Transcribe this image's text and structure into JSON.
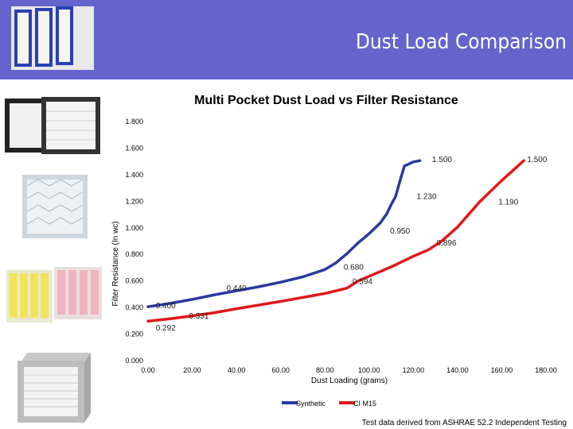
{
  "slide": {
    "title": "Dust  Load Comparison",
    "footnote": "Test data derived from ASHRAE 52.2 Independent Testing",
    "colors": {
      "header": "#6464cc",
      "synthetic": "#2b3aa0",
      "cim15": "#e01818"
    }
  },
  "chart_data": {
    "type": "line",
    "title": "Multi Pocket Dust Load vs Filter Resistance",
    "xlabel": "Dust Loading (grams)",
    "ylabel": "Filter Resistance (In wc)",
    "xlim": [
      0,
      180
    ],
    "ylim": [
      0,
      1.8
    ],
    "xticks": [
      "0.00",
      "20.00",
      "40.00",
      "60.00",
      "80.00",
      "100.00",
      "120.00",
      "140.00",
      "160.00",
      "180.00"
    ],
    "yticks": [
      "0.000",
      "0.200",
      "0.400",
      "0.600",
      "0.800",
      "1.000",
      "1.200",
      "1.400",
      "1.600",
      "1.800"
    ],
    "grid": false,
    "legend": "bottom",
    "series": [
      {
        "name": "Synthetic",
        "color": "#2b3aa0",
        "points": [
          [
            0,
            0.4
          ],
          [
            10,
            0.425
          ],
          [
            20,
            0.455
          ],
          [
            30,
            0.49
          ],
          [
            40,
            0.52
          ],
          [
            50,
            0.55
          ],
          [
            60,
            0.585
          ],
          [
            70,
            0.625
          ],
          [
            80,
            0.68
          ],
          [
            85,
            0.73
          ],
          [
            90,
            0.8
          ],
          [
            95,
            0.88
          ],
          [
            100,
            0.95
          ],
          [
            105,
            1.03
          ],
          [
            108,
            1.1
          ],
          [
            110,
            1.17
          ],
          [
            112,
            1.23
          ],
          [
            114,
            1.35
          ],
          [
            116,
            1.46
          ],
          [
            120,
            1.49
          ],
          [
            123,
            1.5
          ]
        ]
      },
      {
        "name": "CI M15",
        "color": "#e01818",
        "points": [
          [
            0,
            0.292
          ],
          [
            10,
            0.31
          ],
          [
            20,
            0.331
          ],
          [
            30,
            0.355
          ],
          [
            40,
            0.385
          ],
          [
            60,
            0.44
          ],
          [
            80,
            0.5
          ],
          [
            90,
            0.54
          ],
          [
            95,
            0.594
          ],
          [
            110,
            0.7
          ],
          [
            120,
            0.78
          ],
          [
            127,
            0.83
          ],
          [
            133,
            0.896
          ],
          [
            140,
            1.0
          ],
          [
            150,
            1.19
          ],
          [
            160,
            1.35
          ],
          [
            170,
            1.5
          ]
        ]
      }
    ],
    "annotations": [
      {
        "text": "0.400",
        "x": 8,
        "y": 0.39
      },
      {
        "text": "0.292",
        "x": 8,
        "y": 0.22
      },
      {
        "text": "0.331",
        "x": 23,
        "y": 0.31
      },
      {
        "text": "0.440",
        "x": 40,
        "y": 0.52
      },
      {
        "text": "0.594",
        "x": 97,
        "y": 0.57
      },
      {
        "text": "0.680",
        "x": 93,
        "y": 0.68
      },
      {
        "text": "0.950",
        "x": 114,
        "y": 0.95
      },
      {
        "text": "0.896",
        "x": 135,
        "y": 0.86
      },
      {
        "text": "1.230",
        "x": 126,
        "y": 1.21
      },
      {
        "text": "1.190",
        "x": 163,
        "y": 1.17
      },
      {
        "text": "1.500",
        "x": 133,
        "y": 1.49
      },
      {
        "text": "1.500",
        "x": 176,
        "y": 1.49
      }
    ]
  }
}
